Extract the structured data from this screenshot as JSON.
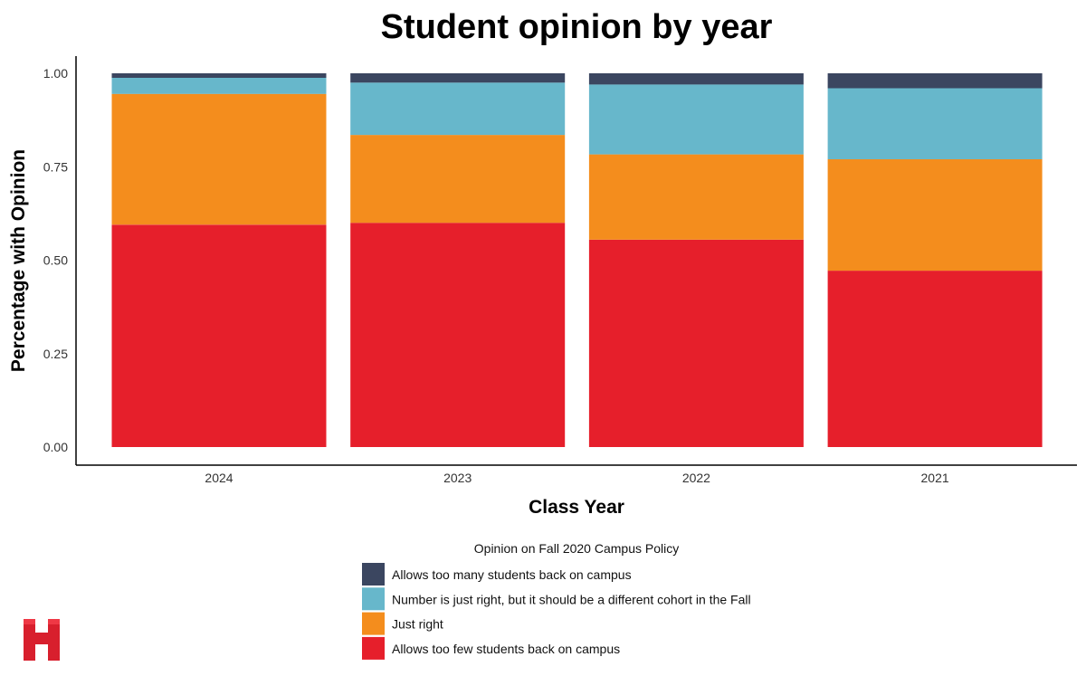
{
  "colors": {
    "too_many": "#3b4660",
    "right_diff_cohort": "#67b7cb",
    "just_right": "#f48d1d",
    "too_few": "#e61f2b",
    "logo": "#d81f2d"
  },
  "logo": {
    "icon": "harvard-h-logo-icon"
  },
  "chart_data": {
    "type": "bar",
    "stacked": true,
    "title": "Student opinion by year",
    "xlabel": "Class Year",
    "ylabel": "Percentage with Opinion",
    "ylim": [
      0,
      1
    ],
    "yticks": [
      "0.00",
      "0.25",
      "0.50",
      "0.75",
      "1.00"
    ],
    "ytick_values": [
      0,
      0.25,
      0.5,
      0.75,
      1.0
    ],
    "categories": [
      "2024",
      "2023",
      "2022",
      "2021"
    ],
    "legend_title": "Opinion on Fall 2020 Campus Policy",
    "legend_position": "bottom",
    "grid": false,
    "series": [
      {
        "name": "Allows too few students back on campus",
        "color_key": "too_few",
        "values": [
          0.595,
          0.6,
          0.555,
          0.472
        ]
      },
      {
        "name": "Just right",
        "color_key": "just_right",
        "values": [
          0.35,
          0.235,
          0.228,
          0.298
        ]
      },
      {
        "name": "Number is just right, but it should be a different cohort in the Fall",
        "color_key": "right_diff_cohort",
        "values": [
          0.043,
          0.14,
          0.187,
          0.19
        ]
      },
      {
        "name": "Allows too many students back on campus",
        "color_key": "too_many",
        "values": [
          0.012,
          0.025,
          0.03,
          0.04
        ]
      }
    ],
    "legend_order": [
      3,
      2,
      1,
      0
    ]
  }
}
